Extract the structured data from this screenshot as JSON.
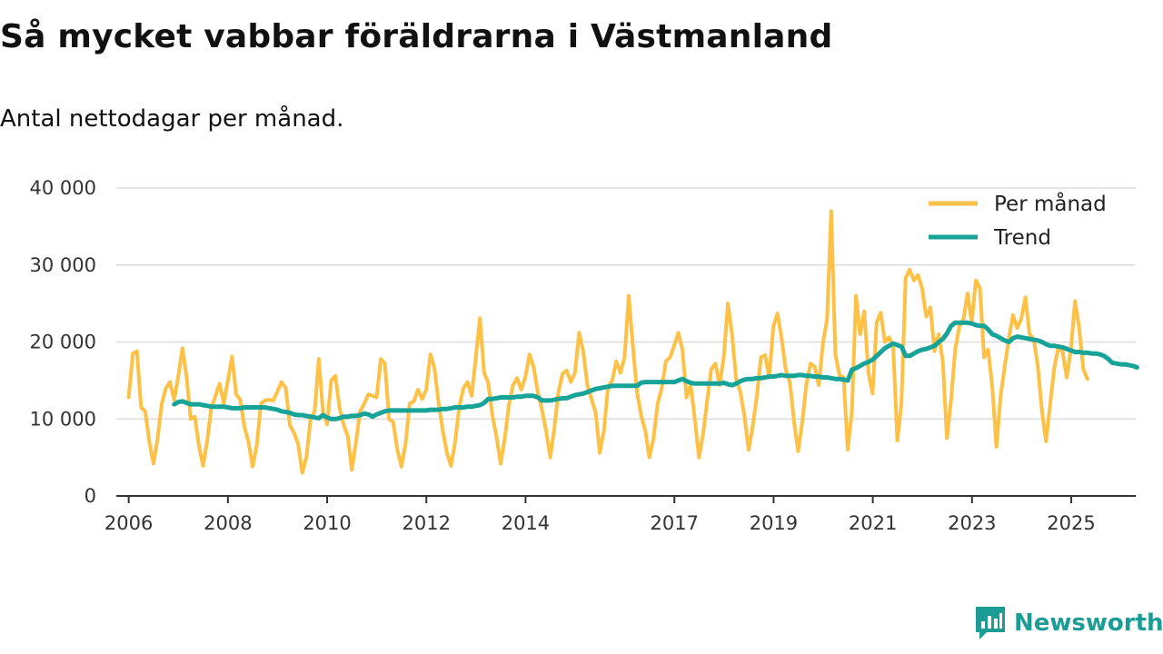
{
  "title": "Så mycket vabbar föräldrarna i Västmanland",
  "subtitle": "Antal nettodagar per månad.",
  "brand": {
    "name": "Newsworthy",
    "icon": "newsworthy-logo-icon"
  },
  "colors": {
    "monthly": "#ffc145",
    "trend": "#17a398",
    "grid": "#dddddd",
    "axis": "#333333",
    "brand": "#1b9c94"
  },
  "chart_data": {
    "type": "line",
    "title": "Så mycket vabbar föräldrarna i Västmanland",
    "subtitle": "Antal nettodagar per månad.",
    "xlabel": "",
    "ylabel": "",
    "xlim": [
      2005.75,
      2026.3
    ],
    "ylim": [
      0,
      40000
    ],
    "grid": true,
    "legend_position": "top-right",
    "x_ticks": [
      2006,
      2008,
      2010,
      2012,
      2014,
      2017,
      2019,
      2021,
      2023,
      2025
    ],
    "x_tick_labels": [
      "2006",
      "2008",
      "2010",
      "2012",
      "2014",
      "2017",
      "2019",
      "2021",
      "2023",
      "2025"
    ],
    "y_ticks": [
      0,
      10000,
      20000,
      30000,
      40000
    ],
    "y_tick_labels": [
      "0",
      "10 000",
      "20 000",
      "30 000",
      "40 000"
    ],
    "series": [
      {
        "name": "Per månad",
        "start": 2006.0,
        "step": 0.0833,
        "values": [
          12800,
          18500,
          18800,
          11500,
          11000,
          7000,
          4200,
          7500,
          12000,
          14000,
          14800,
          12500,
          15500,
          19200,
          15500,
          10000,
          10300,
          6500,
          3900,
          7200,
          11500,
          13000,
          14600,
          12000,
          15000,
          18100,
          13200,
          12500,
          9000,
          7000,
          3800,
          6600,
          12000,
          12400,
          12500,
          12400,
          13600,
          14800,
          14000,
          9200,
          8200,
          6800,
          3000,
          5000,
          10000,
          11000,
          17800,
          11000,
          9300,
          15000,
          15600,
          11500,
          9300,
          7800,
          3400,
          7000,
          11000,
          12000,
          13200,
          13000,
          12800,
          17800,
          17200,
          10000,
          9600,
          6000,
          3800,
          6800,
          12000,
          12300,
          13800,
          12600,
          13800,
          18400,
          16600,
          12000,
          8500,
          5600,
          3900,
          7000,
          11600,
          14000,
          14800,
          13000,
          18000,
          23100,
          16000,
          14700,
          10500,
          7700,
          4200,
          7400,
          11800,
          14400,
          15300,
          13800,
          15500,
          18400,
          16700,
          13500,
          11200,
          8500,
          5000,
          8800,
          13500,
          15900,
          16300,
          14800,
          16000,
          21200,
          18800,
          14400,
          12600,
          10800,
          5600,
          8500,
          14200,
          15000,
          17500,
          16000,
          18000,
          26000,
          19500,
          13500,
          10500,
          8500,
          5000,
          7500,
          12000,
          14000,
          17500,
          18000,
          19500,
          21200,
          19000,
          12800,
          14400,
          10000,
          5000,
          8000,
          12500,
          16500,
          17200,
          14400,
          18000,
          25000,
          21000,
          15200,
          13500,
          10400,
          6000,
          9000,
          13000,
          18000,
          18300,
          15400,
          22000,
          23700,
          20500,
          16400,
          14800,
          9700,
          5800,
          9600,
          14500,
          17200,
          16800,
          14400,
          19800,
          23000,
          37000,
          18400,
          15700,
          15400,
          6000,
          11000,
          26000,
          21000,
          24000,
          16000,
          13300,
          22500,
          23800,
          20000,
          20600,
          19500,
          7200,
          12000,
          28300,
          29400,
          28000,
          28700,
          27000,
          23300,
          24500,
          18800,
          21000,
          17500,
          7500,
          12400,
          19000,
          22000,
          23000,
          26300,
          22500,
          28000,
          27000,
          18000,
          19000,
          14000,
          6400,
          13000,
          16800,
          20500,
          23500,
          21800,
          23000,
          25800,
          21000,
          20400,
          16900,
          11000,
          7100,
          12000,
          16700,
          19400,
          18700,
          15400,
          19000,
          25300,
          21900,
          16500,
          15200
        ]
      },
      {
        "name": "Trend",
        "start": 2006.917,
        "step": 0.0833,
        "values": [
          11900,
          12200,
          12300,
          12100,
          11900,
          11900,
          11900,
          11800,
          11700,
          11600,
          11600,
          11600,
          11600,
          11500,
          11400,
          11400,
          11400,
          11500,
          11500,
          11500,
          11500,
          11500,
          11500,
          11400,
          11300,
          11200,
          11000,
          10900,
          10800,
          10600,
          10500,
          10500,
          10400,
          10300,
          10200,
          10100,
          10500,
          10200,
          10000,
          10000,
          10100,
          10300,
          10300,
          10400,
          10400,
          10500,
          10700,
          10600,
          10300,
          10600,
          10800,
          11000,
          11100,
          11100,
          11100,
          11100,
          11100,
          11100,
          11100,
          11100,
          11100,
          11100,
          11200,
          11200,
          11200,
          11300,
          11300,
          11400,
          11500,
          11500,
          11500,
          11600,
          11600,
          11700,
          11800,
          12100,
          12600,
          12600,
          12700,
          12800,
          12800,
          12800,
          12800,
          12900,
          12900,
          13000,
          13000,
          13000,
          12800,
          12400,
          12400,
          12400,
          12500,
          12600,
          12700,
          12700,
          12900,
          13100,
          13200,
          13300,
          13500,
          13700,
          13900,
          14000,
          14100,
          14200,
          14300,
          14300,
          14300,
          14300,
          14300,
          14300,
          14300,
          14700,
          14800,
          14800,
          14800,
          14800,
          14800,
          14800,
          14800,
          14800,
          15000,
          15200,
          14900,
          14700,
          14600,
          14600,
          14600,
          14600,
          14600,
          14600,
          14600,
          14700,
          14500,
          14400,
          14600,
          14900,
          15100,
          15200,
          15200,
          15300,
          15300,
          15400,
          15500,
          15500,
          15600,
          15700,
          15600,
          15600,
          15600,
          15700,
          15700,
          15600,
          15600,
          15500,
          15500,
          15400,
          15400,
          15300,
          15200,
          15200,
          15100,
          15000,
          16400,
          16600,
          16900,
          17200,
          17400,
          17700,
          18200,
          18700,
          19200,
          19500,
          19800,
          19600,
          19400,
          18200,
          18200,
          18500,
          18800,
          19000,
          19100,
          19300,
          19500,
          20000,
          20400,
          21100,
          22100,
          22500,
          22500,
          22500,
          22500,
          22400,
          22200,
          22100,
          22100,
          21600,
          21000,
          20800,
          20500,
          20200,
          20000,
          20500,
          20700,
          20600,
          20500,
          20400,
          20300,
          20200,
          20000,
          19700,
          19500,
          19500,
          19400,
          19300,
          19100,
          18900,
          18700,
          18700,
          18600,
          18600,
          18500,
          18500,
          18400,
          18200,
          17800,
          17300,
          17200,
          17100,
          17100,
          17000,
          16900,
          16700
        ]
      }
    ]
  }
}
